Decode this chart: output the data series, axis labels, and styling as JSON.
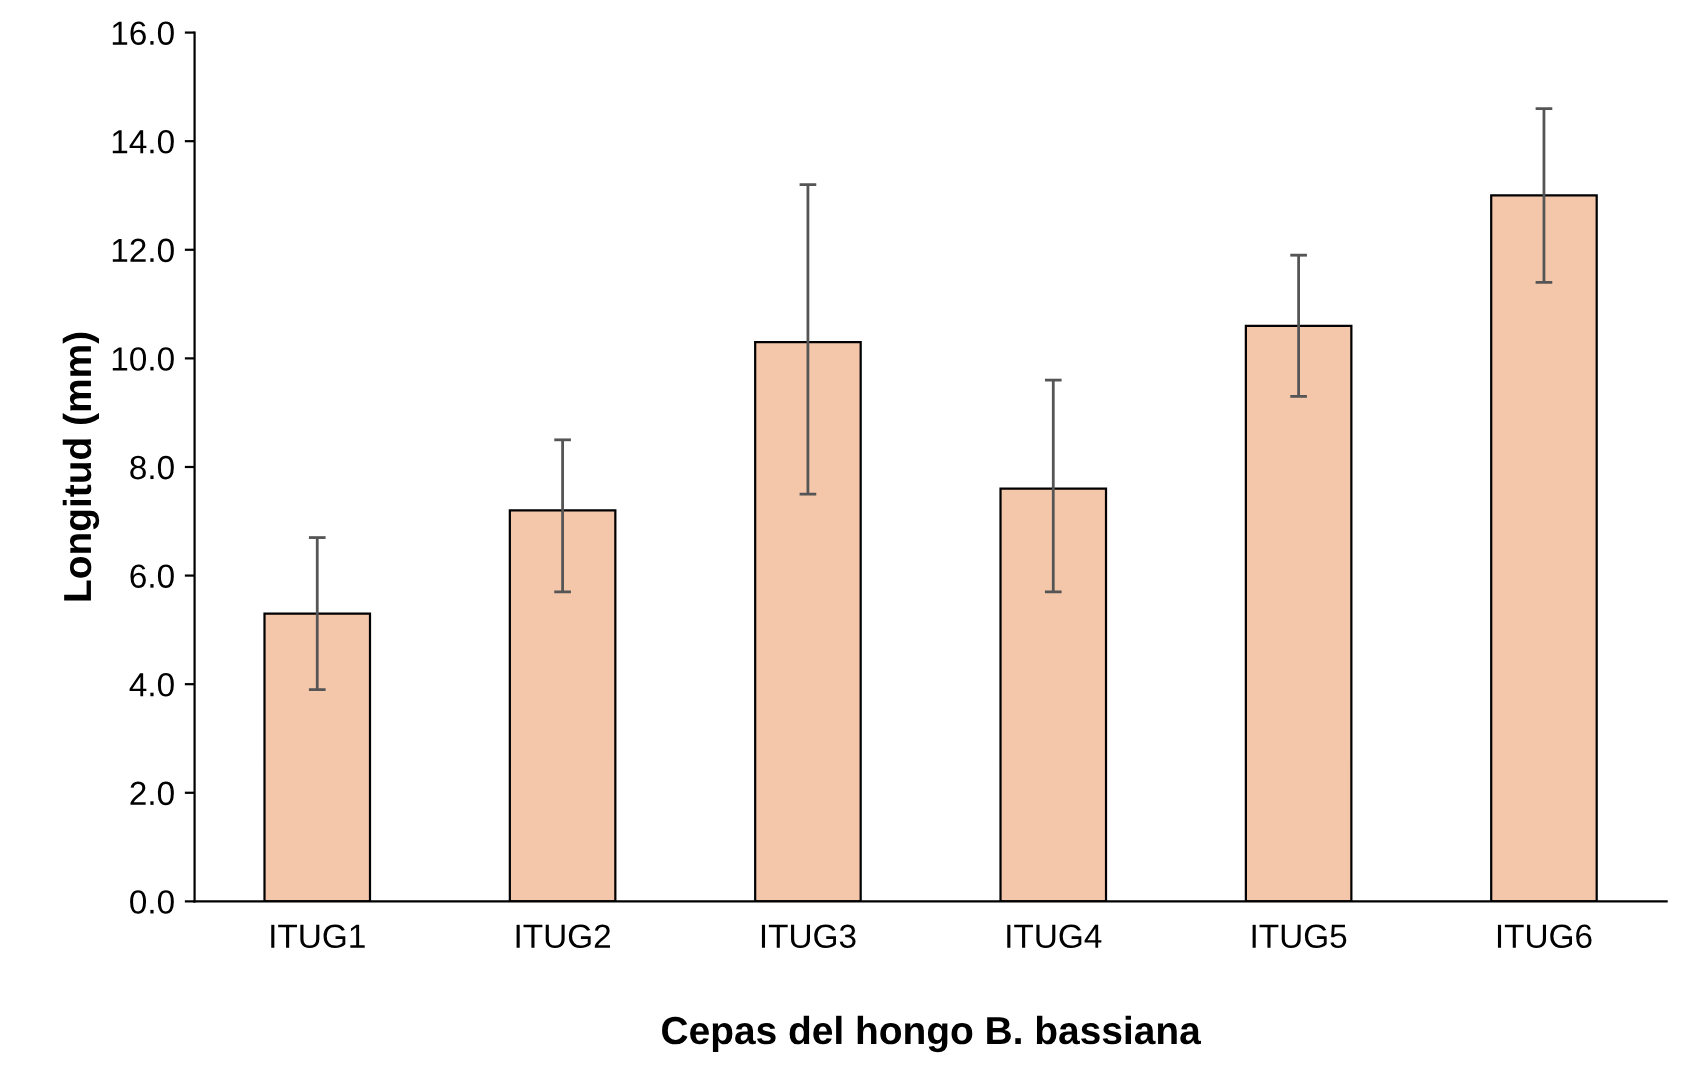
{
  "chart_data": {
    "type": "bar",
    "xlabel": "Cepas del hongo B. bassiana",
    "ylabel": "Longitud (mm)",
    "categories": [
      "ITUG1",
      "ITUG2",
      "ITUG3",
      "ITUG4",
      "ITUG5",
      "ITUG6"
    ],
    "values": [
      5.3,
      7.2,
      10.3,
      7.6,
      10.6,
      13.0
    ],
    "errors": [
      [
        3.9,
        6.7
      ],
      [
        5.7,
        8.5
      ],
      [
        7.5,
        13.2
      ],
      [
        5.7,
        9.6
      ],
      [
        9.3,
        11.9
      ],
      [
        11.4,
        14.6
      ]
    ],
    "color": "#f4c7ab",
    "ylim": [
      0,
      16
    ],
    "yticks": [
      {
        "value": 0,
        "label": "0.0"
      },
      {
        "value": 2,
        "label": "2.0"
      },
      {
        "value": 4,
        "label": "4.0"
      },
      {
        "value": 6,
        "label": "6.0"
      },
      {
        "value": 8,
        "label": "8.0"
      },
      {
        "value": 10,
        "label": "10.0"
      },
      {
        "value": 12,
        "label": "12.0"
      },
      {
        "value": 14,
        "label": "14.0"
      },
      {
        "value": 16,
        "label": "16.0"
      }
    ],
    "grid": false,
    "legend": false
  }
}
